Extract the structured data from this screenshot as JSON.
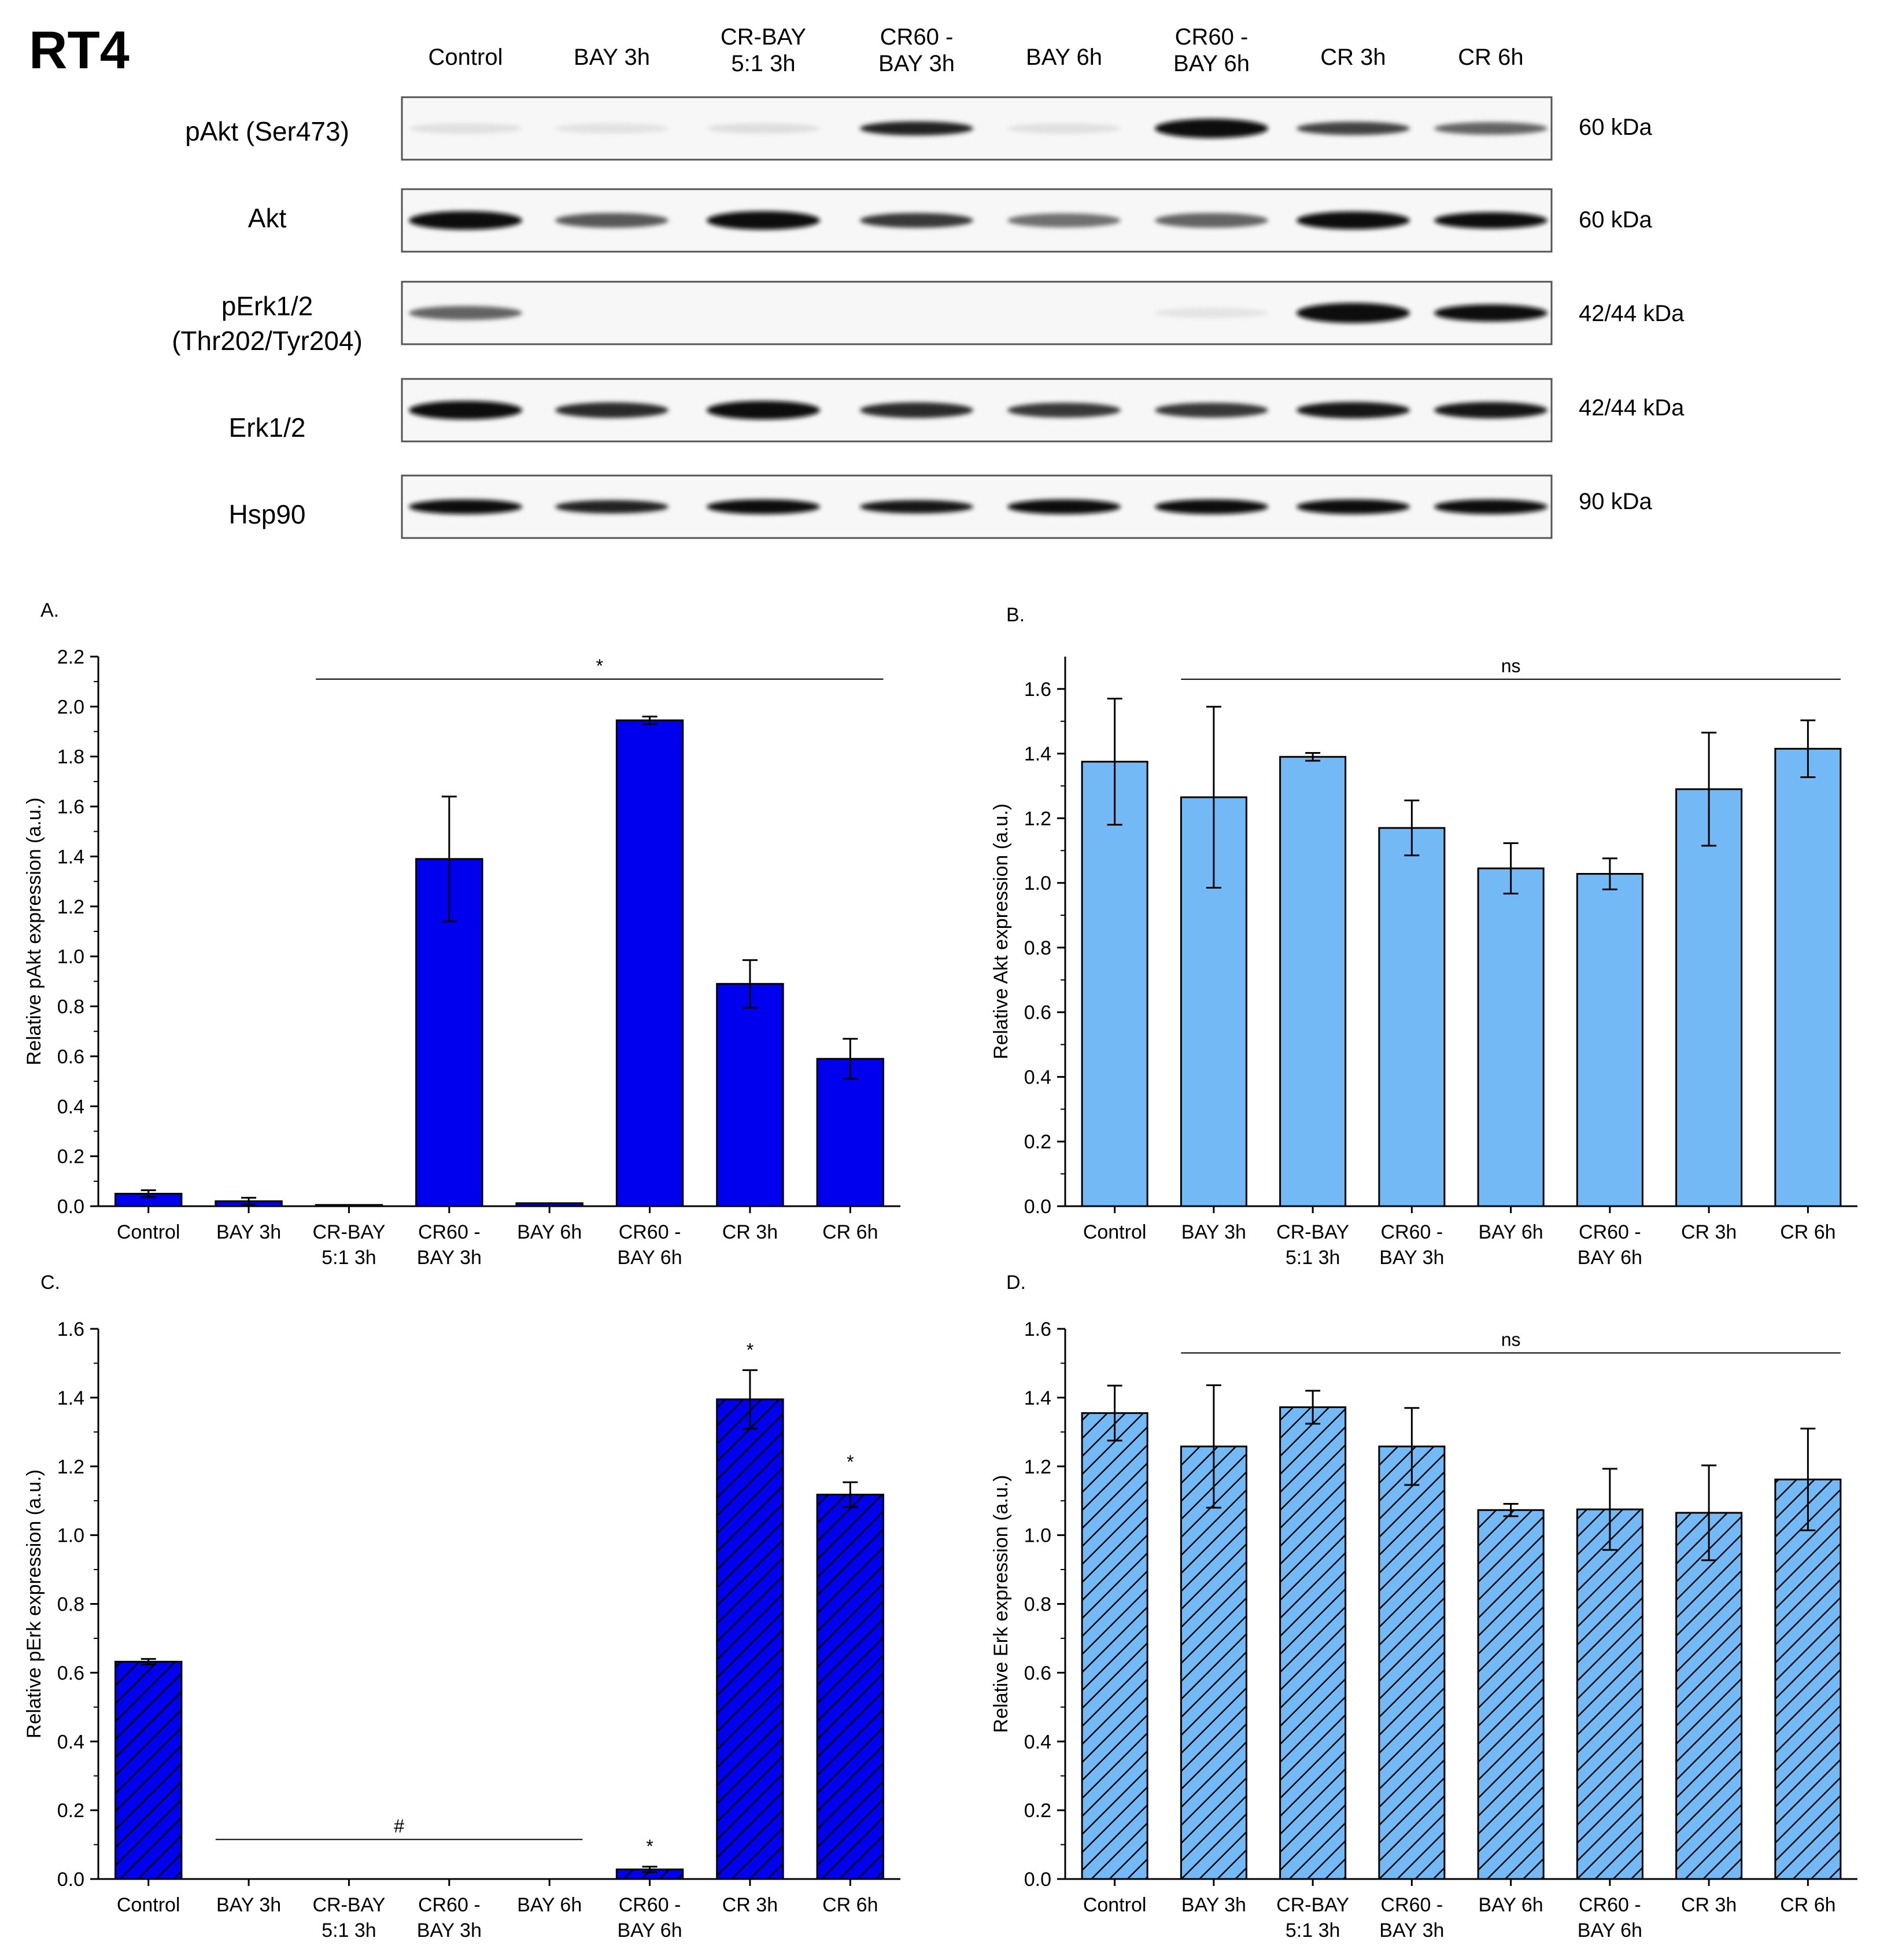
{
  "figure_title": "RT4",
  "blot": {
    "lanes": [
      [
        "Control"
      ],
      [
        "BAY 3h"
      ],
      [
        "CR-BAY",
        "5:1 3h"
      ],
      [
        "CR60 -",
        "BAY 3h"
      ],
      [
        "BAY 6h"
      ],
      [
        "CR60 -",
        "BAY 6h"
      ],
      [
        "CR 3h"
      ],
      [
        "CR 6h"
      ]
    ],
    "rows": [
      {
        "label": [
          "pAkt (Ser473)"
        ],
        "kda": "60 kDa",
        "intensity": [
          0.05,
          0.04,
          0.06,
          0.9,
          0.05,
          1.0,
          0.75,
          0.6
        ],
        "thickness": [
          0.3,
          0.3,
          0.3,
          0.55,
          0.3,
          0.9,
          0.5,
          0.45
        ]
      },
      {
        "label": [
          "Akt"
        ],
        "kda": "60 kDa",
        "intensity": [
          1.0,
          0.65,
          1.0,
          0.8,
          0.55,
          0.6,
          1.0,
          1.0
        ],
        "thickness": [
          0.85,
          0.6,
          0.85,
          0.6,
          0.55,
          0.6,
          0.8,
          0.7
        ]
      },
      {
        "label": [
          "pErk1/2",
          "(Thr202/Tyr204)"
        ],
        "kda": "42/44 kDa",
        "intensity": [
          0.6,
          0.0,
          0.0,
          0.0,
          0.0,
          0.03,
          1.0,
          1.0
        ],
        "thickness": [
          0.55,
          0.3,
          0.3,
          0.3,
          0.3,
          0.3,
          0.95,
          0.75
        ]
      },
      {
        "label": [
          "Erk1/2"
        ],
        "kda": "42/44 kDa",
        "intensity": [
          1.0,
          0.85,
          1.0,
          0.85,
          0.8,
          0.8,
          0.95,
          0.95
        ],
        "thickness": [
          0.85,
          0.65,
          0.85,
          0.65,
          0.6,
          0.6,
          0.7,
          0.7
        ]
      },
      {
        "label": [
          "Hsp90"
        ],
        "kda": "90 kDa",
        "intensity": [
          1.0,
          0.9,
          1.0,
          0.95,
          1.0,
          1.0,
          1.0,
          1.0
        ],
        "thickness": [
          0.6,
          0.5,
          0.6,
          0.5,
          0.6,
          0.6,
          0.6,
          0.6
        ]
      }
    ]
  },
  "chart_data": [
    {
      "panel": "A.",
      "type": "bar",
      "fill": "#0000ee",
      "hatched": false,
      "categories": [
        [
          "Control"
        ],
        [
          "BAY 3h"
        ],
        [
          "CR-BAY",
          "5:1 3h"
        ],
        [
          "CR60 -",
          "BAY 3h"
        ],
        [
          "BAY 6h"
        ],
        [
          "CR60 -",
          "BAY 6h"
        ],
        [
          "CR 3h"
        ],
        [
          "CR 6h"
        ]
      ],
      "values": [
        0.05,
        0.02,
        0.005,
        1.39,
        0.012,
        1.945,
        0.89,
        0.59
      ],
      "errors": [
        0.014,
        0.014,
        0.0,
        0.25,
        0.0,
        0.015,
        0.095,
        0.08
      ],
      "ylabel": "Relative pAkt expression (a.u.)",
      "ylim": [
        0,
        2.2
      ],
      "ytick_step": 0.2,
      "annotations": [
        {
          "type": "bracket",
          "from": 2,
          "to": 7,
          "y": 2.11,
          "text": "*"
        }
      ]
    },
    {
      "panel": "B.",
      "type": "bar",
      "fill": "#72b9f5",
      "hatched": false,
      "categories": [
        [
          "Control"
        ],
        [
          "BAY 3h"
        ],
        [
          "CR-BAY",
          "5:1 3h"
        ],
        [
          "CR60 -",
          "BAY 3h"
        ],
        [
          "BAY 6h"
        ],
        [
          "CR60 -",
          "BAY 6h"
        ],
        [
          "CR 3h"
        ],
        [
          "CR 6h"
        ]
      ],
      "values": [
        1.375,
        1.265,
        1.39,
        1.17,
        1.045,
        1.028,
        1.29,
        1.415
      ],
      "errors": [
        0.195,
        0.28,
        0.012,
        0.085,
        0.078,
        0.048,
        0.175,
        0.088
      ],
      "ylabel": "Relative Akt expression (a.u.)",
      "ylim": [
        0,
        1.7
      ],
      "ytick_step": 0.2,
      "annotations": [
        {
          "type": "bracket",
          "from": 1,
          "to": 7,
          "y": 1.63,
          "text": "ns"
        }
      ]
    },
    {
      "panel": "C.",
      "type": "bar",
      "fill": "#0000ee",
      "hatched": true,
      "categories": [
        [
          "Control"
        ],
        [
          "BAY 3h"
        ],
        [
          "CR-BAY",
          "5:1 3h"
        ],
        [
          "CR60 -",
          "BAY 3h"
        ],
        [
          "BAY 6h"
        ],
        [
          "CR60 -",
          "BAY 6h"
        ],
        [
          "CR 3h"
        ],
        [
          "CR 6h"
        ]
      ],
      "values": [
        0.632,
        0.0,
        0.0,
        0.0,
        0.0,
        0.028,
        1.395,
        1.118
      ],
      "errors": [
        0.008,
        0.0,
        0.0,
        0.0,
        0.0,
        0.008,
        0.085,
        0.036
      ],
      "ylabel": "Relative pErk expression (a.u.)",
      "ylim": [
        0,
        1.6
      ],
      "ytick_step": 0.2,
      "annotations": [
        {
          "type": "bracket",
          "from": 1,
          "to": 4,
          "y": 0.115,
          "text": "#"
        },
        {
          "type": "star",
          "at": 5,
          "text": "*"
        },
        {
          "type": "star",
          "at": 6,
          "text": "*"
        },
        {
          "type": "star",
          "at": 7,
          "text": "*"
        }
      ]
    },
    {
      "panel": "D.",
      "type": "bar",
      "fill": "#72b9f5",
      "hatched": true,
      "categories": [
        [
          "Control"
        ],
        [
          "BAY 3h"
        ],
        [
          "CR-BAY",
          "5:1 3h"
        ],
        [
          "CR60 -",
          "BAY 3h"
        ],
        [
          "BAY 6h"
        ],
        [
          "CR60 -",
          "BAY 6h"
        ],
        [
          "CR 3h"
        ],
        [
          "CR 6h"
        ]
      ],
      "values": [
        1.355,
        1.258,
        1.372,
        1.258,
        1.073,
        1.075,
        1.065,
        1.162
      ],
      "errors": [
        0.08,
        0.178,
        0.048,
        0.112,
        0.018,
        0.118,
        0.138,
        0.148
      ],
      "ylabel": "Relative Erk expression (a.u.)",
      "ylim": [
        0,
        1.6
      ],
      "ytick_step": 0.2,
      "annotations": [
        {
          "type": "bracket",
          "from": 1,
          "to": 7,
          "y": 1.53,
          "text": "ns"
        }
      ]
    }
  ]
}
